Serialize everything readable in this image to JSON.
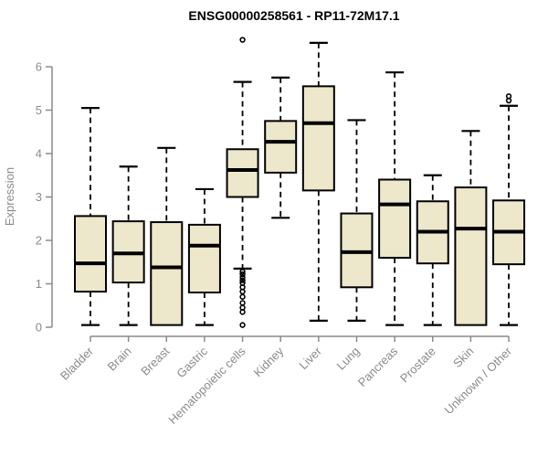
{
  "chart_data": {
    "type": "boxplot",
    "title": "ENSG00000258561 - RP11-72M17.1",
    "xlabel": "",
    "ylabel": "Expression",
    "ylim": [
      0,
      6.75
    ],
    "yticks": [
      0,
      1,
      2,
      3,
      4,
      5,
      6
    ],
    "grid": false,
    "legend": "none",
    "categories": [
      "Bladder",
      "Brain",
      "Breast",
      "Gastric",
      "Hematopoietic cells",
      "Kidney",
      "Liver",
      "Lung",
      "Pancreas",
      "Prostate",
      "Skin",
      "Unknown / Other"
    ],
    "series": [
      {
        "category": "Bladder",
        "whisker_low": 0.05,
        "q1": 0.82,
        "median": 1.47,
        "q3": 2.56,
        "whisker_high": 5.05,
        "outliers": []
      },
      {
        "category": "Brain",
        "whisker_low": 0.05,
        "q1": 1.03,
        "median": 1.7,
        "q3": 2.44,
        "whisker_high": 3.7,
        "outliers": []
      },
      {
        "category": "Breast",
        "whisker_low": 0.05,
        "q1": 0.05,
        "median": 1.38,
        "q3": 2.42,
        "whisker_high": 4.13,
        "outliers": []
      },
      {
        "category": "Gastric",
        "whisker_low": 0.05,
        "q1": 0.8,
        "median": 1.88,
        "q3": 2.36,
        "whisker_high": 3.18,
        "outliers": []
      },
      {
        "category": "Hematopoietic cells",
        "whisker_low": 1.35,
        "q1": 3.0,
        "median": 3.62,
        "q3": 4.1,
        "whisker_high": 5.65,
        "outliers": [
          6.62,
          1.28,
          1.22,
          1.15,
          1.08,
          1.02,
          0.92,
          0.82,
          0.7,
          0.56,
          0.45,
          0.35,
          0.05
        ]
      },
      {
        "category": "Kidney",
        "whisker_low": 2.52,
        "q1": 3.56,
        "median": 4.27,
        "q3": 4.75,
        "whisker_high": 5.75,
        "outliers": []
      },
      {
        "category": "Liver",
        "whisker_low": 0.15,
        "q1": 3.15,
        "median": 4.7,
        "q3": 5.55,
        "whisker_high": 6.55,
        "outliers": []
      },
      {
        "category": "Lung",
        "whisker_low": 0.15,
        "q1": 0.92,
        "median": 1.73,
        "q3": 2.62,
        "whisker_high": 4.77,
        "outliers": []
      },
      {
        "category": "Pancreas",
        "whisker_low": 0.05,
        "q1": 1.6,
        "median": 2.83,
        "q3": 3.4,
        "whisker_high": 5.87,
        "outliers": []
      },
      {
        "category": "Prostate",
        "whisker_low": 0.05,
        "q1": 1.47,
        "median": 2.2,
        "q3": 2.9,
        "whisker_high": 3.5,
        "outliers": []
      },
      {
        "category": "Skin",
        "whisker_low": 0.05,
        "q1": 0.05,
        "median": 2.27,
        "q3": 3.22,
        "whisker_high": 4.52,
        "outliers": []
      },
      {
        "category": "Unknown / Other",
        "whisker_low": 0.05,
        "q1": 1.45,
        "median": 2.2,
        "q3": 2.92,
        "whisker_high": 5.1,
        "outliers": [
          5.22,
          5.32
        ]
      }
    ],
    "colors": {
      "box_fill": "#EDE7CB",
      "box_stroke": "#000000",
      "median": "#000000",
      "whisker": "#000000",
      "axis": "#8a8a8a",
      "title": "#000000",
      "background": "#ffffff"
    }
  }
}
